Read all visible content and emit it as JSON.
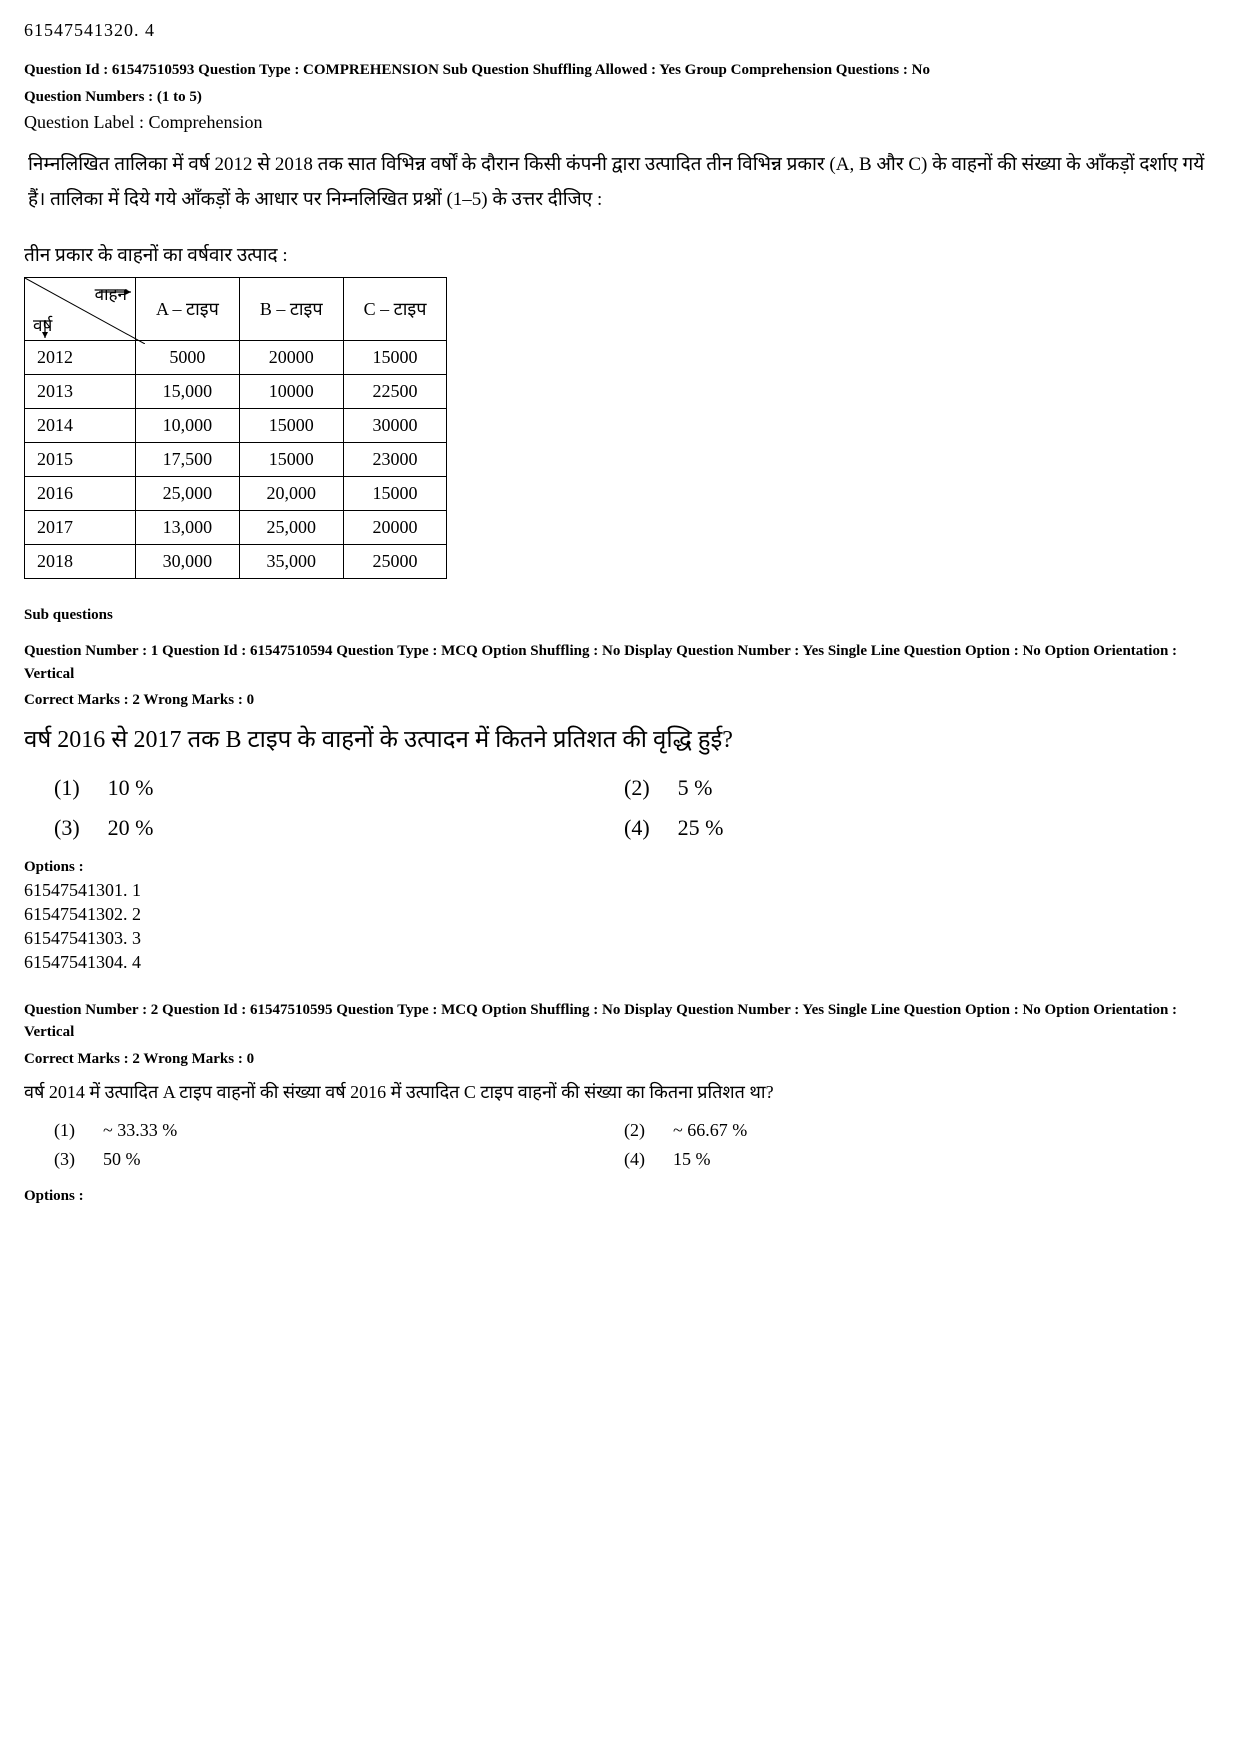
{
  "top_code": "61547541320. 4",
  "comp_meta": "Question Id : 61547510593  Question Type : COMPREHENSION  Sub Question Shuffling Allowed : Yes  Group Comprehension Questions : No",
  "q_numbers": "Question Numbers : (1 to 5)",
  "q_label": "Question Label : Comprehension",
  "passage": "निम्नलिखित तालिका में वर्ष 2012 से 2018 तक सात विभिन्न वर्षों के दौरान किसी कंपनी द्वारा उत्पादित तीन विभिन्न प्रकार (A, B और C) के वाहनों की संख्या के आँकड़ों दर्शाए गयें हैं। तालिका में दिये गये आँकड़ों के आधार पर निम्नलिखित प्रश्नों (1–5) के उत्तर दीजिए :",
  "table_title": "तीन प्रकार के वाहनों का वर्षवार उत्पाद :",
  "table": {
    "diag_top": "वाहन",
    "diag_bottom": "वर्ष",
    "columns": [
      "A – टाइप",
      "B – टाइप",
      "C – टाइप"
    ],
    "rows": [
      {
        "year": "2012",
        "cells": [
          "5000",
          "20000",
          "15000"
        ]
      },
      {
        "year": "2013",
        "cells": [
          "15,000",
          "10000",
          "22500"
        ]
      },
      {
        "year": "2014",
        "cells": [
          "10,000",
          "15000",
          "30000"
        ]
      },
      {
        "year": "2015",
        "cells": [
          "17,500",
          "15000",
          "23000"
        ]
      },
      {
        "year": "2016",
        "cells": [
          "25,000",
          "20,000",
          "15000"
        ]
      },
      {
        "year": "2017",
        "cells": [
          "13,000",
          "25,000",
          "20000"
        ]
      },
      {
        "year": "2018",
        "cells": [
          "30,000",
          "35,000",
          "25000"
        ]
      }
    ]
  },
  "subq_heading": "Sub questions",
  "q1": {
    "meta1": "Question Number : 1  Question Id : 61547510594  Question Type : MCQ  Option Shuffling : No  Display Question Number : Yes  Single Line Question Option : No  Option Orientation : Vertical",
    "meta2": "Correct Marks : 2  Wrong Marks : 0",
    "text": "वर्ष 2016 से 2017 तक B टाइप के वाहनों के उत्पादन में कितने प्रतिशत की वृद्धि हुई?",
    "opts": [
      {
        "n": "(1)",
        "v": "10 %"
      },
      {
        "n": "(2)",
        "v": "5 %"
      },
      {
        "n": "(3)",
        "v": "20 %"
      },
      {
        "n": "(4)",
        "v": "25 %"
      }
    ],
    "options_label": "Options :",
    "option_ids": [
      "61547541301. 1",
      "61547541302. 2",
      "61547541303. 3",
      "61547541304. 4"
    ]
  },
  "q2": {
    "meta1": "Question Number : 2  Question Id : 61547510595  Question Type : MCQ  Option Shuffling : No  Display Question Number : Yes  Single Line Question Option : No  Option Orientation : Vertical",
    "meta2": "Correct Marks : 2  Wrong Marks : 0",
    "text": "वर्ष 2014 में उत्पादित A टाइप वाहनों की संख्या वर्ष 2016 में उत्पादित C टाइप वाहनों की संख्या का कितना प्रतिशत था?",
    "opts": [
      {
        "n": "(1)",
        "v": "~ 33.33 %"
      },
      {
        "n": "(2)",
        "v": "~ 66.67 %"
      },
      {
        "n": "(3)",
        "v": "50 %"
      },
      {
        "n": "(4)",
        "v": "15 %"
      }
    ],
    "options_label": "Options :"
  }
}
